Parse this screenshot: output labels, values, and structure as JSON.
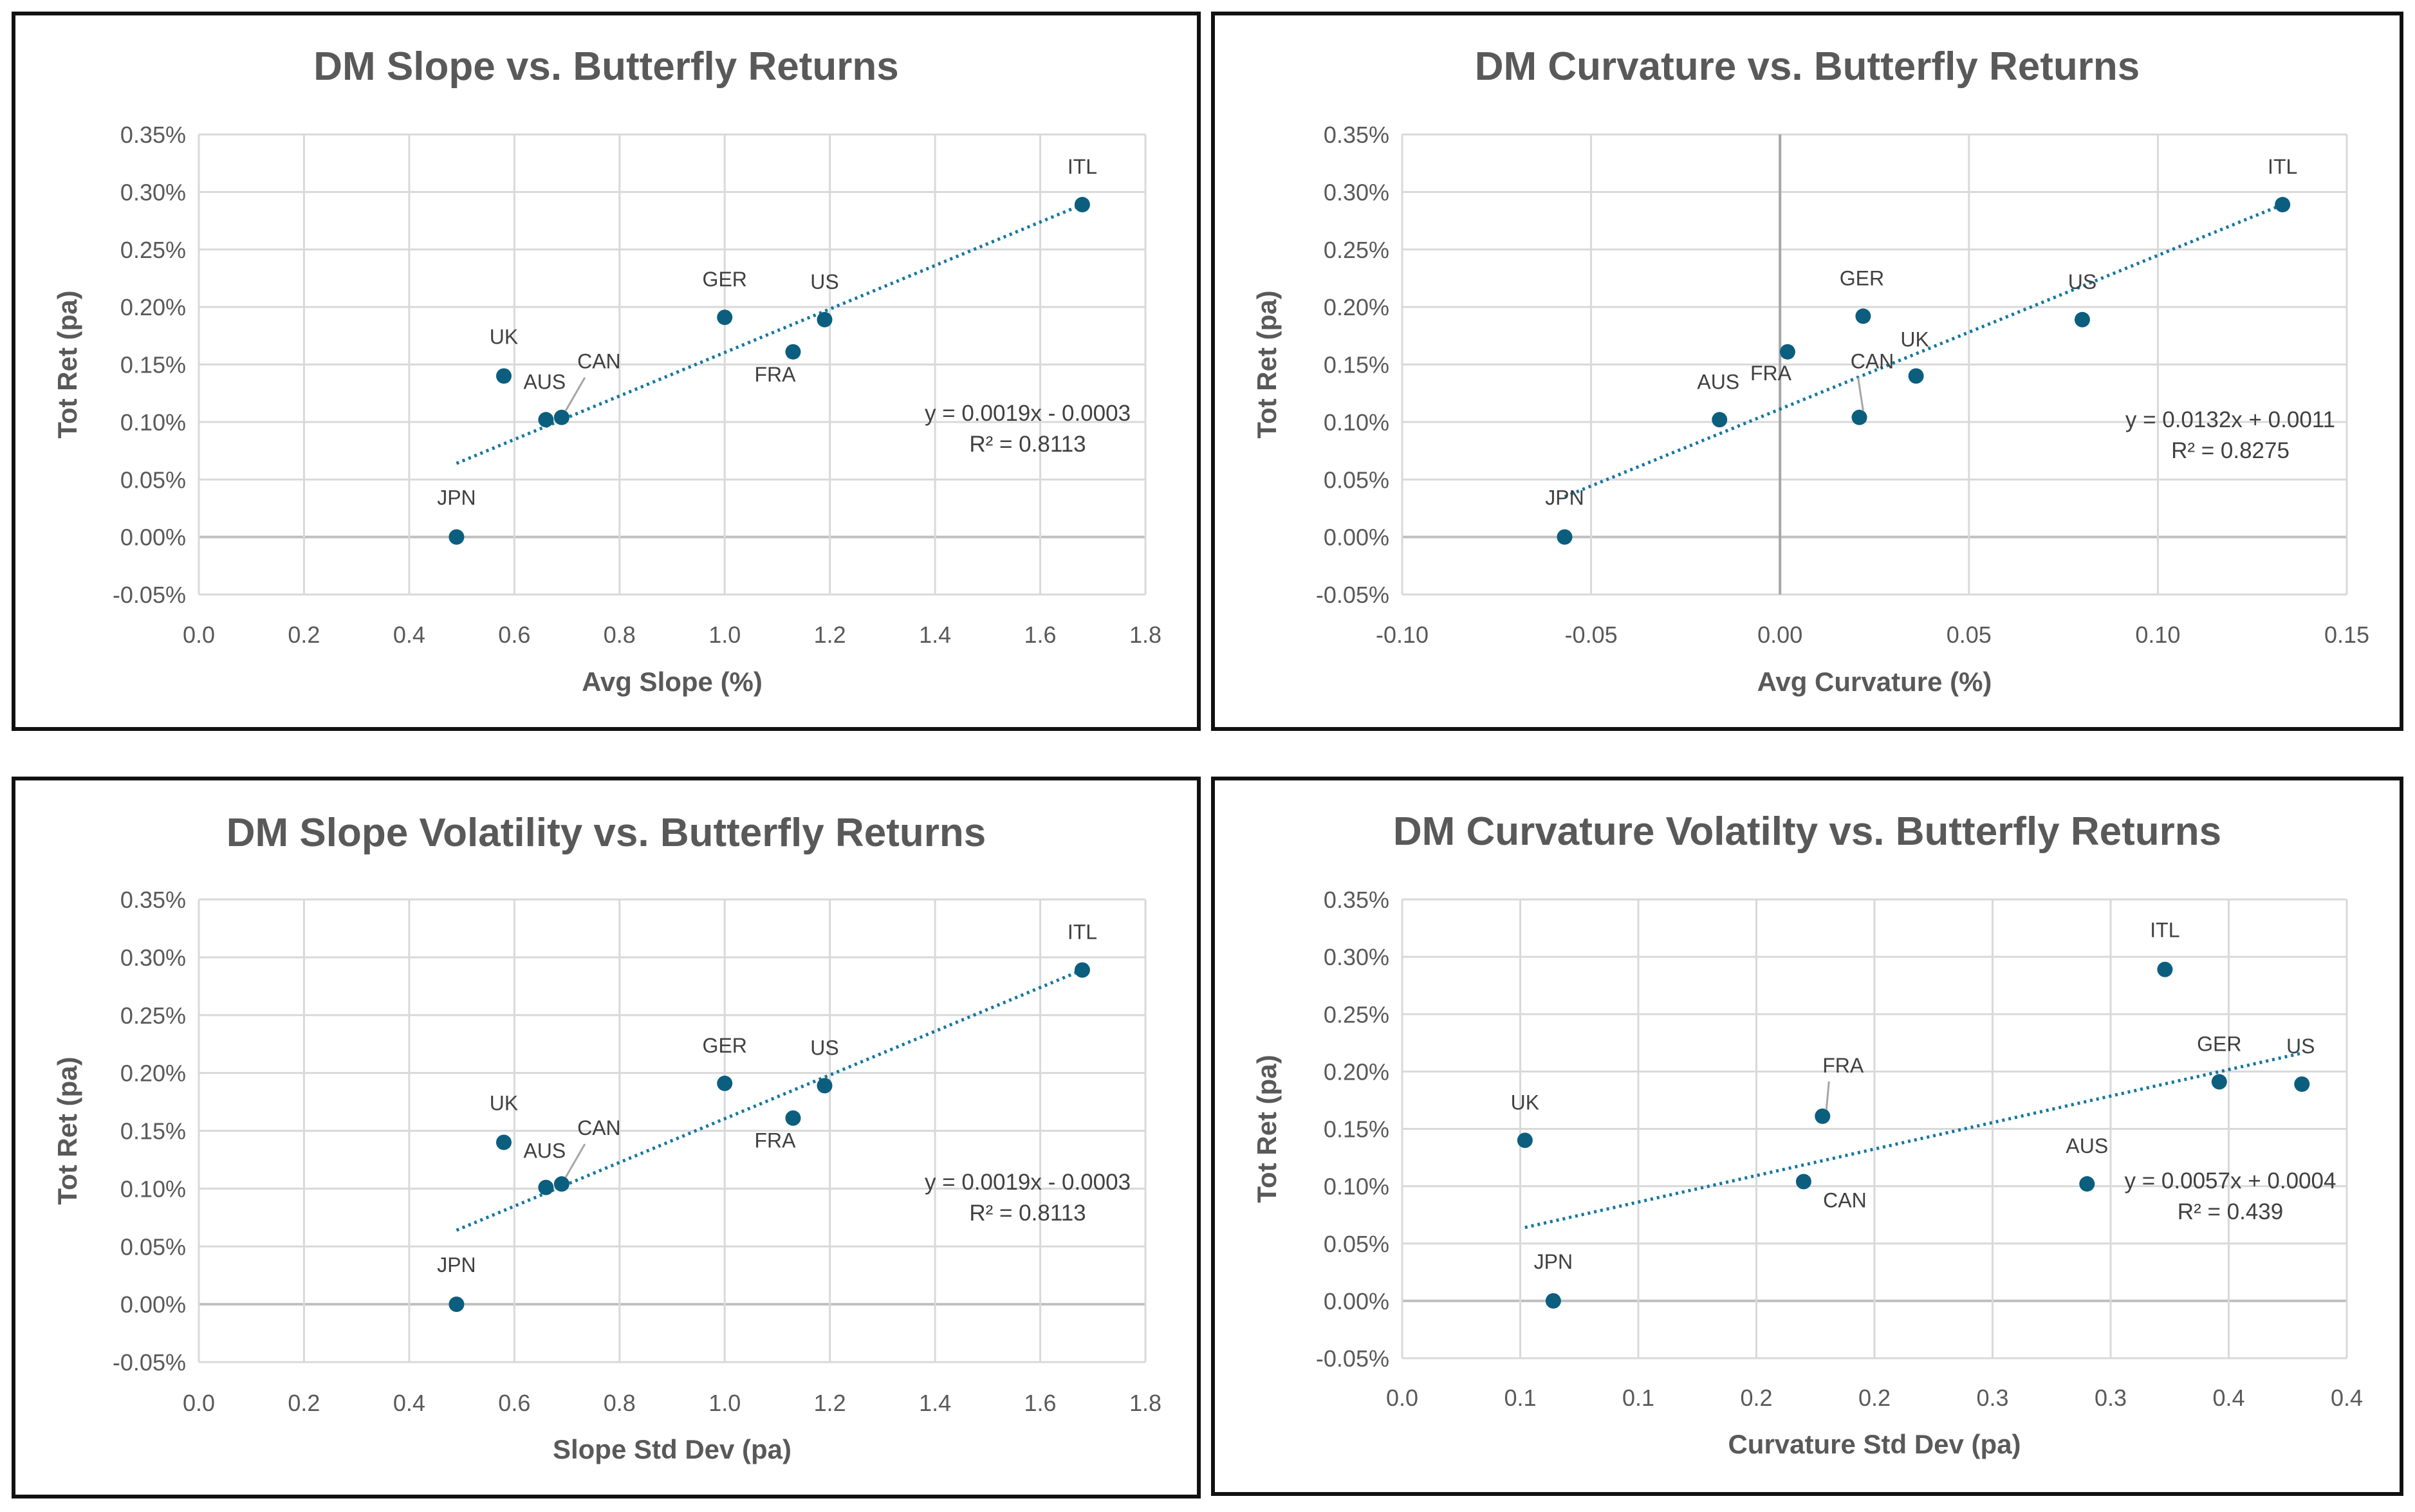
{
  "colors": {
    "marker": "#0b5e7e",
    "trend": "#1577a0",
    "grid": "#d9d9d9",
    "zero": "#bfbfbf",
    "text": "#595959"
  },
  "chart_data": [
    {
      "type": "scatter",
      "title": "DM Slope vs. Butterfly Returns",
      "xlabel": "Avg Slope (%)",
      "ylabel": "Tot Ret (pa)",
      "xlim": [
        0,
        1.8
      ],
      "ylim": [
        -0.05,
        0.35
      ],
      "x_ticks": [
        0,
        0.2,
        0.4,
        0.6,
        0.8,
        1.0,
        1.2,
        1.4,
        1.6,
        1.8
      ],
      "x_tick_labels": [
        "0.0",
        "0.2",
        "0.4",
        "0.6",
        "0.8",
        "1.0",
        "1.2",
        "1.4",
        "1.6",
        "1.8"
      ],
      "y_ticks": [
        -0.05,
        0,
        0.05,
        0.1,
        0.15,
        0.2,
        0.25,
        0.3,
        0.35
      ],
      "y_tick_labels": [
        "-0.05%",
        "0.00%",
        "0.05%",
        "0.10%",
        "0.15%",
        "0.20%",
        "0.25%",
        "0.30%",
        "0.35%"
      ],
      "points": [
        {
          "label": "ITL",
          "x": 1.68,
          "y": 0.289
        },
        {
          "label": "GER",
          "x": 1.0,
          "y": 0.191
        },
        {
          "label": "US",
          "x": 1.19,
          "y": 0.189
        },
        {
          "label": "FRA",
          "x": 1.13,
          "y": 0.161
        },
        {
          "label": "UK",
          "x": 0.58,
          "y": 0.14
        },
        {
          "label": "CAN",
          "x": 0.69,
          "y": 0.104
        },
        {
          "label": "AUS",
          "x": 0.66,
          "y": 0.102
        },
        {
          "label": "JPN",
          "x": 0.49,
          "y": 0.0
        }
      ],
      "trendline": {
        "slope": 0.0019,
        "intercept": -0.0003,
        "x_range": [
          0.49,
          1.68
        ],
        "y_range": [
          0.064,
          0.289
        ]
      },
      "equation": "y = 0.0019x - 0.0003",
      "r2": "R² = 0.8113"
    },
    {
      "type": "scatter",
      "title": "DM Curvature vs. Butterfly Returns",
      "xlabel": "Avg Curvature (%)",
      "ylabel": "Tot Ret (pa)",
      "xlim": [
        -0.1,
        0.15
      ],
      "ylim": [
        -0.05,
        0.35
      ],
      "x_ticks": [
        -0.1,
        -0.05,
        0,
        0.05,
        0.1,
        0.15
      ],
      "x_tick_labels": [
        "-0.10",
        "-0.05",
        "0.00",
        "0.05",
        "0.10",
        "0.15"
      ],
      "y_ticks": [
        -0.05,
        0,
        0.05,
        0.1,
        0.15,
        0.2,
        0.25,
        0.3,
        0.35
      ],
      "y_tick_labels": [
        "-0.05%",
        "0.00%",
        "0.05%",
        "0.10%",
        "0.15%",
        "0.20%",
        "0.25%",
        "0.30%",
        "0.35%"
      ],
      "points": [
        {
          "label": "ITL",
          "x": 0.133,
          "y": 0.289
        },
        {
          "label": "GER",
          "x": 0.022,
          "y": 0.192
        },
        {
          "label": "US",
          "x": 0.08,
          "y": 0.189
        },
        {
          "label": "FRA",
          "x": 0.002,
          "y": 0.161
        },
        {
          "label": "UK",
          "x": 0.036,
          "y": 0.14
        },
        {
          "label": "CAN",
          "x": 0.021,
          "y": 0.104
        },
        {
          "label": "AUS",
          "x": -0.016,
          "y": 0.102
        },
        {
          "label": "JPN",
          "x": -0.057,
          "y": 0.0
        }
      ],
      "trendline": {
        "slope": 0.0132,
        "intercept": 0.0011,
        "x_range": [
          -0.057,
          0.133
        ],
        "y_range": [
          0.035,
          0.289
        ]
      },
      "equation": "y = 0.0132x + 0.0011",
      "r2": "R² = 0.8275"
    },
    {
      "type": "scatter",
      "title": "DM Slope Volatility vs. Butterfly Returns",
      "xlabel": "Slope Std Dev (pa)",
      "ylabel": "Tot Ret (pa)",
      "xlim": [
        0,
        1.8
      ],
      "ylim": [
        -0.05,
        0.35
      ],
      "x_ticks": [
        0,
        0.2,
        0.4,
        0.6,
        0.8,
        1.0,
        1.2,
        1.4,
        1.6,
        1.8
      ],
      "x_tick_labels": [
        "0.0",
        "0.2",
        "0.4",
        "0.6",
        "0.8",
        "1.0",
        "1.2",
        "1.4",
        "1.6",
        "1.8"
      ],
      "y_ticks": [
        -0.05,
        0,
        0.05,
        0.1,
        0.15,
        0.2,
        0.25,
        0.3,
        0.35
      ],
      "y_tick_labels": [
        "-0.05%",
        "0.00%",
        "0.05%",
        "0.10%",
        "0.15%",
        "0.20%",
        "0.25%",
        "0.30%",
        "0.35%"
      ],
      "points": [
        {
          "label": "ITL",
          "x": 1.68,
          "y": 0.289
        },
        {
          "label": "GER",
          "x": 1.0,
          "y": 0.191
        },
        {
          "label": "US",
          "x": 1.19,
          "y": 0.189
        },
        {
          "label": "FRA",
          "x": 1.13,
          "y": 0.161
        },
        {
          "label": "UK",
          "x": 0.58,
          "y": 0.14
        },
        {
          "label": "CAN",
          "x": 0.69,
          "y": 0.104
        },
        {
          "label": "AUS",
          "x": 0.66,
          "y": 0.101
        },
        {
          "label": "JPN",
          "x": 0.49,
          "y": 0.0
        }
      ],
      "trendline": {
        "slope": 0.0019,
        "intercept": -0.0003,
        "x_range": [
          0.49,
          1.68
        ],
        "y_range": [
          0.064,
          0.289
        ]
      },
      "equation": "y = 0.0019x - 0.0003",
      "r2": "R² = 0.8113"
    },
    {
      "type": "scatter",
      "title": "DM Curvature Volatilty vs. Butterfly Returns",
      "xlabel": "Curvature Std Dev (pa)",
      "ylabel": "Tot Ret (pa)",
      "xlim": [
        0,
        0.4
      ],
      "ylim": [
        -0.05,
        0.35
      ],
      "x_ticks": [
        0,
        0.05,
        0.1,
        0.15,
        0.2,
        0.25,
        0.3,
        0.35,
        0.4
      ],
      "x_tick_labels": [
        "0.0",
        "0.1",
        "0.1",
        "0.2",
        "0.2",
        "0.3",
        "0.3",
        "0.4",
        "0.4"
      ],
      "y_ticks": [
        -0.05,
        0,
        0.05,
        0.1,
        0.15,
        0.2,
        0.25,
        0.3,
        0.35
      ],
      "y_tick_labels": [
        "-0.05%",
        "0.00%",
        "0.05%",
        "0.10%",
        "0.15%",
        "0.20%",
        "0.25%",
        "0.30%",
        "0.35%"
      ],
      "points": [
        {
          "label": "ITL",
          "x": 0.323,
          "y": 0.289
        },
        {
          "label": "GER",
          "x": 0.346,
          "y": 0.191
        },
        {
          "label": "US",
          "x": 0.381,
          "y": 0.189
        },
        {
          "label": "FRA",
          "x": 0.178,
          "y": 0.161
        },
        {
          "label": "UK",
          "x": 0.052,
          "y": 0.14
        },
        {
          "label": "CAN",
          "x": 0.17,
          "y": 0.104
        },
        {
          "label": "AUS",
          "x": 0.29,
          "y": 0.102
        },
        {
          "label": "JPN",
          "x": 0.064,
          "y": 0.0
        }
      ],
      "trendline": {
        "slope": 0.0057,
        "intercept": 0.0004,
        "x_range": [
          0.052,
          0.381
        ],
        "y_range": [
          0.064,
          0.216
        ]
      },
      "equation": "y = 0.0057x + 0.0004",
      "r2": "R² = 0.439"
    }
  ]
}
